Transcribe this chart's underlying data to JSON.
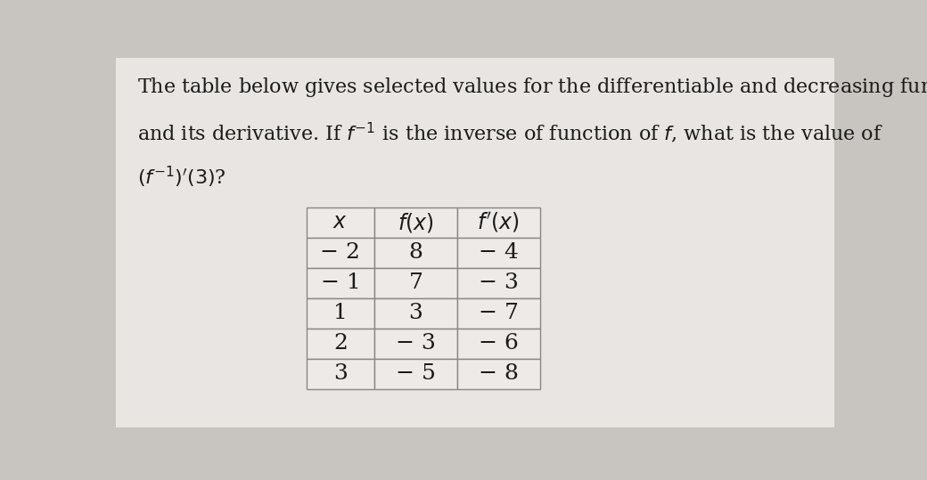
{
  "background_color": "#c8c4c0",
  "page_color": "#e8e5e2",
  "text_color": "#1a1a1a",
  "table_data": [
    [
      "− 2",
      "8",
      "− 4"
    ],
    [
      "− 1",
      "7",
      "− 3"
    ],
    [
      "1",
      "3",
      "− 7"
    ],
    [
      "2",
      "− 3",
      "− 6"
    ],
    [
      "3",
      "− 5",
      "− 8"
    ]
  ],
  "table_border_color": "#888888",
  "table_cell_bg": "#edeae7",
  "font_size_question": 16,
  "font_size_table_header": 17,
  "font_size_table_data": 18
}
